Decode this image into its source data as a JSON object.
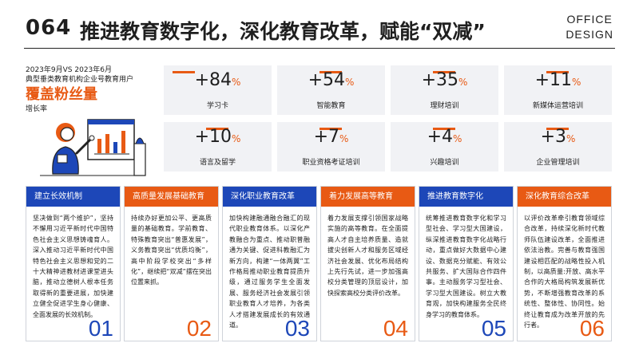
{
  "header": {
    "page_number": "064",
    "title": "推进教育数字化，深化教育改革，赋能“双减”",
    "brand_line1": "OFFICE",
    "brand_line2": "DESIGN"
  },
  "left": {
    "line1": "2023年9月VS 2023年6月",
    "line2": "典型垂类教育机构企业号教育用户",
    "highlight": "覆盖粉丝量",
    "sub": "增长率"
  },
  "colors": {
    "accent_orange": "#e85a14",
    "accent_blue": "#1d47b8",
    "card_bg": "#f1f2f5"
  },
  "stats": [
    {
      "value": "+84",
      "unit": "%",
      "label": "学习卡"
    },
    {
      "value": "+54",
      "unit": "%",
      "label": "智能教育"
    },
    {
      "value": "+35",
      "unit": "%",
      "label": "理财培训"
    },
    {
      "value": "+11",
      "unit": "%",
      "label": "新媒体运营培训"
    },
    {
      "value": "+10",
      "unit": "%",
      "label": "语言及留学"
    },
    {
      "value": "+7",
      "unit": "%",
      "label": "职业资格考证培训"
    },
    {
      "value": "+4",
      "unit": "%",
      "label": "兴趣培训"
    },
    {
      "value": "+3",
      "unit": "%",
      "label": "企业管理培训"
    }
  ],
  "columns": [
    {
      "title": "建立长效机制",
      "number": "01",
      "text": "坚决做到“两个维护”，坚持不懈用习近平新时代中国特色社会主义思想铸魂育人。深入推动习近平新时代中国特色社会主义思想和党的二十大精神进教材进课堂进头脑，推动立德树人根本任务取得新的重要进展，加快建立健全促进学生身心健康、全面发展的长效机制。"
    },
    {
      "title": "高质量发展基础教育",
      "number": "02",
      "text": "持续办好更加公平、更高质量的基础教育。学前教育、特殊教育突出“普惠发展”，义务教育突出“优质均衡”，高中阶段学校突出“多样化”，继续把“双减”摆在突出位置来抓。"
    },
    {
      "title": "深化职业教育改革",
      "number": "03",
      "text": "加快构建融通融合融汇的现代职业教育体系。以深化产教融合为重点、推动职普融通为关键、促进科教融汇为新方向，构建“一体两翼”工作格局推动职业教育提质升级，通过服务学生全面发展、服务经济社会发展引领职业教育人才培养，为各类人才搭建发展成长的有效通道。"
    },
    {
      "title": "着力发展高等教育",
      "number": "04",
      "text": "着力发展支撑引领国家战略实施的高等教育。在全面提高人才自主培养质量、造就拔尖创新人才和服务区域经济社会发展、优化布局结构上先行先试，进一步加强高校分类管理的顶层设计，加快探索高校分类评价改革。"
    },
    {
      "title": "推进教育数字化",
      "number": "05",
      "text": "统筹推进教育数字化和学习型社会、学习型大国建设，纵深推进教育数字化战略行动，重点做好大数据中心建设、数据充分赋能、有效公共服务、扩大国际合作四件事。主动服务学习型社会、学习型大国建设。树立大教育观，加快构建服务全民终身学习的教育体系。"
    },
    {
      "title": "深化教育综合改革",
      "number": "06",
      "text": "以评价改革牵引教育领域综合改革，持续深化新时代教师队伍建设改革，全面推进依法治教。完善与教育强国建设相匹配的战略性投入机制，以高质量:开放、高水平合作的大格局构筑发展新优势，不断增强教育改革的系统性、整体性、协同性。始终让教育成为改革开放的先行者。"
    }
  ]
}
